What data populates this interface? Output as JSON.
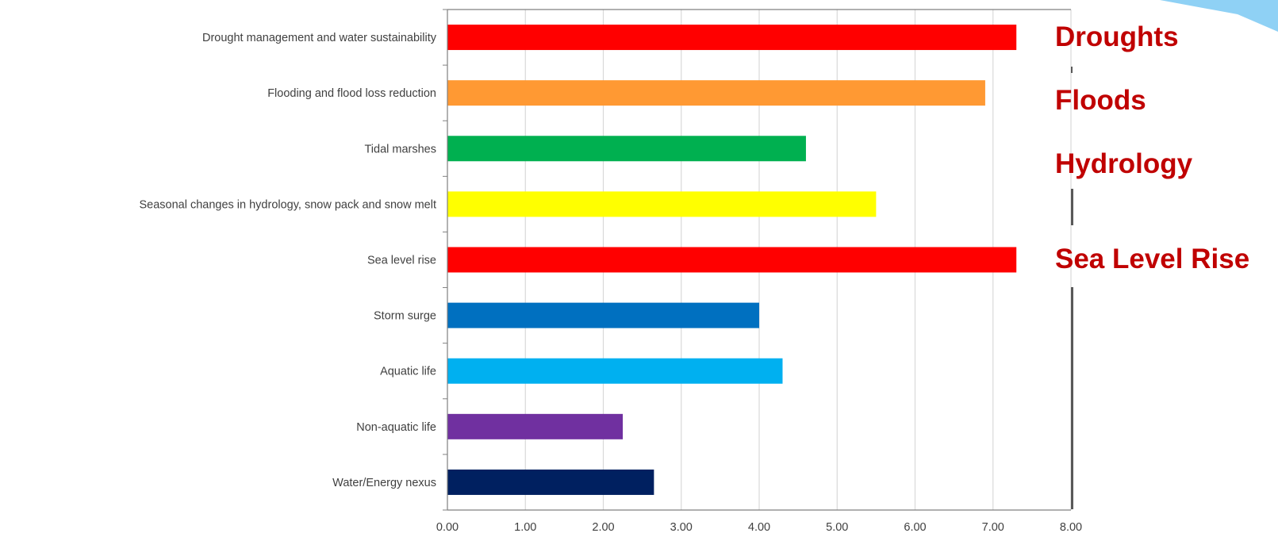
{
  "colors": {
    "annotation": "#c00000",
    "axis": "#808080",
    "gridline": "#d9d9d9",
    "label_text": "#404040",
    "corner_arrow": "#8fd1f5"
  },
  "chart_data": {
    "type": "bar",
    "orientation": "horizontal",
    "title": "",
    "xlabel": "",
    "ylabel": "",
    "xlim": [
      0,
      8
    ],
    "x_ticks": [
      "0.00",
      "1.00",
      "2.00",
      "3.00",
      "4.00",
      "5.00",
      "6.00",
      "7.00",
      "8.00"
    ],
    "grid": "vertical gridlines on",
    "categories": [
      "Drought management and water sustainability",
      "Flooding and flood loss reduction",
      "Tidal marshes",
      "Seasonal changes in hydrology, snow pack and snow melt",
      "Sea level rise",
      "Storm surge",
      "Aquatic life",
      "Non-aquatic life",
      "Water/Energy nexus"
    ],
    "values": [
      7.3,
      6.9,
      4.6,
      5.5,
      7.3,
      4.0,
      4.3,
      2.25,
      2.65
    ],
    "bar_colors": [
      "#ff0000",
      "#ff9933",
      "#00b050",
      "#ffff00",
      "#ff0000",
      "#0070c0",
      "#00b0f0",
      "#7030a0",
      "#002060"
    ],
    "annotations": [
      "Droughts",
      "Floods",
      "Hydrology",
      "Sea Level Rise"
    ]
  }
}
